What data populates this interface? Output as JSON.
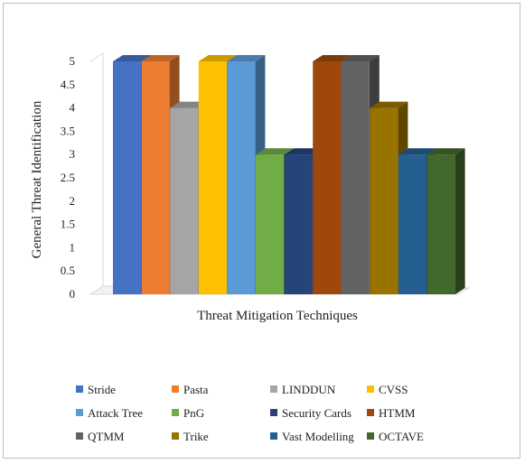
{
  "chart_data": {
    "type": "bar",
    "style": "3d-clustered-column",
    "title": "",
    "xlabel": "Threat Mitigation Techniques",
    "ylabel": "General Threat Identification",
    "ylim": [
      0,
      5
    ],
    "yticks": [
      "0",
      "0.5",
      "1",
      "1.5",
      "2",
      "2.5",
      "3",
      "3.5",
      "4",
      "4.5",
      "5"
    ],
    "grid": false,
    "legend_position": "bottom",
    "series": [
      {
        "name": "Stride",
        "values": [
          5
        ],
        "color": "#4472C4"
      },
      {
        "name": "Pasta",
        "values": [
          5
        ],
        "color": "#ED7D31"
      },
      {
        "name": "LINDDUN",
        "values": [
          4
        ],
        "color": "#A5A5A5"
      },
      {
        "name": "CVSS",
        "values": [
          5
        ],
        "color": "#FFC000"
      },
      {
        "name": "Attack Tree",
        "values": [
          5
        ],
        "color": "#5B9BD5"
      },
      {
        "name": "PnG",
        "values": [
          3
        ],
        "color": "#70AD47"
      },
      {
        "name": "Security Cards",
        "values": [
          3
        ],
        "color": "#264478"
      },
      {
        "name": "HTMM",
        "values": [
          5
        ],
        "color": "#9E480E"
      },
      {
        "name": "QTMM",
        "values": [
          5
        ],
        "color": "#636363"
      },
      {
        "name": "Trike",
        "values": [
          4
        ],
        "color": "#997300"
      },
      {
        "name": "Vast Modelling",
        "values": [
          3
        ],
        "color": "#255E91"
      },
      {
        "name": "OCTAVE",
        "values": [
          3
        ],
        "color": "#43682B"
      }
    ]
  }
}
